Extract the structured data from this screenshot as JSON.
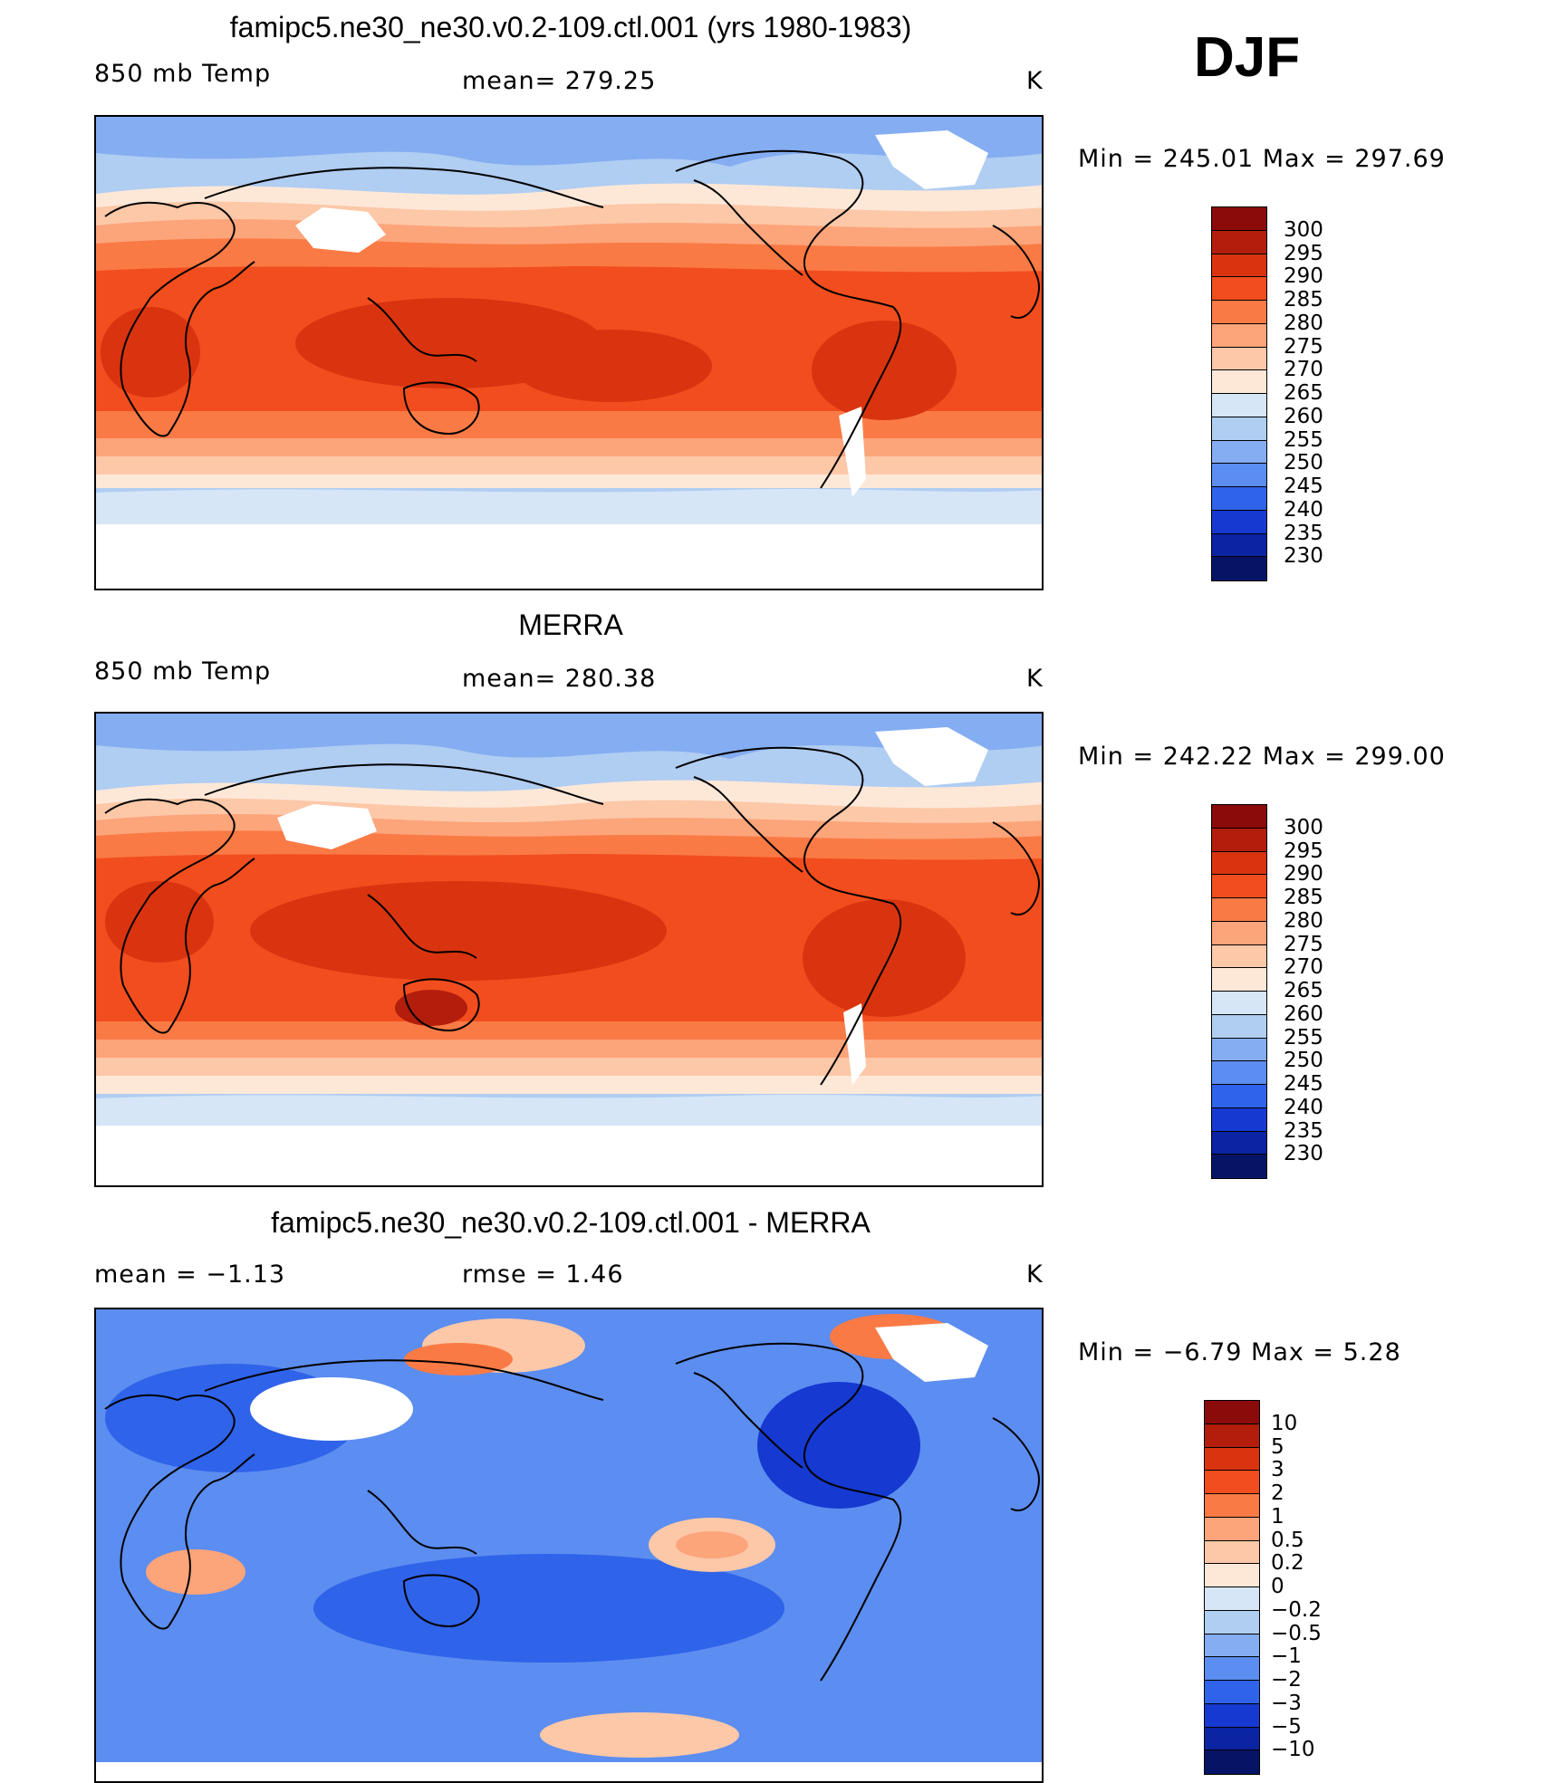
{
  "season": "DJF",
  "panels": [
    {
      "title": "famipc5.ne30_ne30.v0.2-109.ctl.001 (yrs 1980-1983)",
      "left_text": "850 mb Temp",
      "center_text": "mean=  279.25",
      "units": "K",
      "minmax": "Min  =  245.01  Max  =  297.69",
      "colorbar": {
        "labels": [
          "300",
          "295",
          "290",
          "285",
          "280",
          "275",
          "270",
          "265",
          "260",
          "255",
          "250",
          "245",
          "240",
          "235",
          "230"
        ],
        "colors": [
          "#8b0a0a",
          "#b31d0c",
          "#d9340f",
          "#f24d1e",
          "#fa7a45",
          "#fca47a",
          "#fcc8a8",
          "#fde8d8",
          "#d6e6f7",
          "#b0cdf2",
          "#85adf1",
          "#5c8df0",
          "#2f63ea",
          "#1539d1",
          "#0a24a4",
          "#061466"
        ]
      }
    },
    {
      "title": "MERRA",
      "left_text": "850 mb Temp",
      "center_text": "mean=  280.38",
      "units": "K",
      "minmax": "Min  =  242.22  Max  =  299.00",
      "colorbar": {
        "labels": [
          "300",
          "295",
          "290",
          "285",
          "280",
          "275",
          "270",
          "265",
          "260",
          "255",
          "250",
          "245",
          "240",
          "235",
          "230"
        ],
        "colors": [
          "#8b0a0a",
          "#b31d0c",
          "#d9340f",
          "#f24d1e",
          "#fa7a45",
          "#fca47a",
          "#fcc8a8",
          "#fde8d8",
          "#d6e6f7",
          "#b0cdf2",
          "#85adf1",
          "#5c8df0",
          "#2f63ea",
          "#1539d1",
          "#0a24a4",
          "#061466"
        ]
      }
    },
    {
      "title": "famipc5.ne30_ne30.v0.2-109.ctl.001 - MERRA",
      "left_text": "mean  =    −1.13",
      "center_text": "rmse  =     1.46",
      "units": "K",
      "minmax": "Min  =    −6.79  Max  =      5.28",
      "colorbar": {
        "labels": [
          "10",
          "5",
          "3",
          "2",
          "1",
          "0.5",
          "0.2",
          "0",
          "−0.2",
          "−0.5",
          "−1",
          "−2",
          "−3",
          "−5",
          "−10"
        ],
        "colors": [
          "#8b0a0a",
          "#b31d0c",
          "#d9340f",
          "#f24d1e",
          "#fa7a45",
          "#fca47a",
          "#fcc8a8",
          "#fde8d8",
          "#d6e6f7",
          "#b0cdf2",
          "#85adf1",
          "#5c8df0",
          "#2f63ea",
          "#1539d1",
          "#0a24a4",
          "#061466"
        ]
      }
    }
  ]
}
